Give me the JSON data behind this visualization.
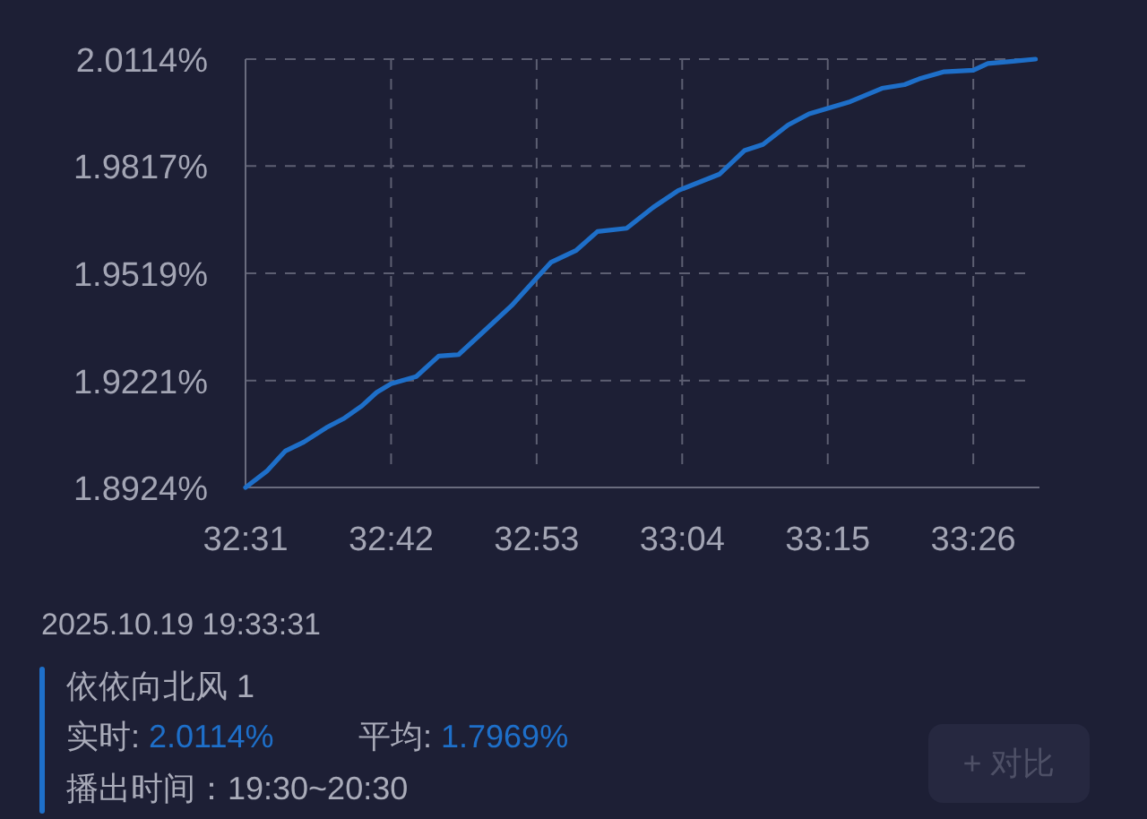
{
  "chart_data": {
    "type": "line",
    "x": [
      1951,
      1952.6,
      1954,
      1955.4,
      1957.1,
      1958.4,
      1959.8,
      1960.9,
      1962,
      1963.9,
      1965.6,
      1967.1,
      1968.9,
      1971.1,
      1973,
      1974.1,
      1976,
      1977.6,
      1979.8,
      1981.8,
      1983.7,
      1986.8,
      1988.7,
      1990.1,
      1992,
      1993.6,
      1996.7,
      1999.1,
      2000.8,
      2001.9,
      2003.8,
      2006,
      2007.1,
      2009,
      2010.7
    ],
    "series": [
      {
        "color": "#1e6fc9",
        "values": [
          1.8924,
          1.8969,
          1.9025,
          1.905,
          1.909,
          1.9115,
          1.9151,
          1.9188,
          1.9212,
          1.9232,
          1.9289,
          1.9293,
          1.9354,
          1.9429,
          1.9506,
          1.955,
          1.9583,
          1.9635,
          1.9644,
          1.9702,
          1.9749,
          1.9794,
          1.986,
          1.9877,
          1.9931,
          1.9962,
          1.9996,
          2.0033,
          2.0043,
          2.0059,
          2.0079,
          2.0083,
          2.0102,
          2.0108,
          2.0114
        ]
      }
    ],
    "xlim": [
      1951,
      2011
    ],
    "xticks": [
      {
        "value": 1951,
        "label": "32:31"
      },
      {
        "value": 1962,
        "label": "32:42"
      },
      {
        "value": 1973,
        "label": "32:53"
      },
      {
        "value": 1984,
        "label": "33:04"
      },
      {
        "value": 1995,
        "label": "33:15"
      },
      {
        "value": 2006,
        "label": "33:26"
      }
    ],
    "ylim": [
      1.8924,
      2.0114
    ],
    "yticks": [
      {
        "value": 1.8924,
        "label": "1.8924%"
      },
      {
        "value": 1.9221,
        "label": "1.9221%"
      },
      {
        "value": 1.9519,
        "label": "1.9519%"
      },
      {
        "value": 1.9817,
        "label": "1.9817%"
      },
      {
        "value": 2.0114,
        "label": "2.0114%"
      }
    ],
    "grid": true,
    "line_style": "solid",
    "marker": "none",
    "annotations": [
      "2025.10.19 19:33:31",
      "依依向北风 1",
      "实时: 2.0114%",
      "平均: 1.7969%",
      "播出时间：19:30~20:30",
      "+ 对比"
    ]
  }
}
